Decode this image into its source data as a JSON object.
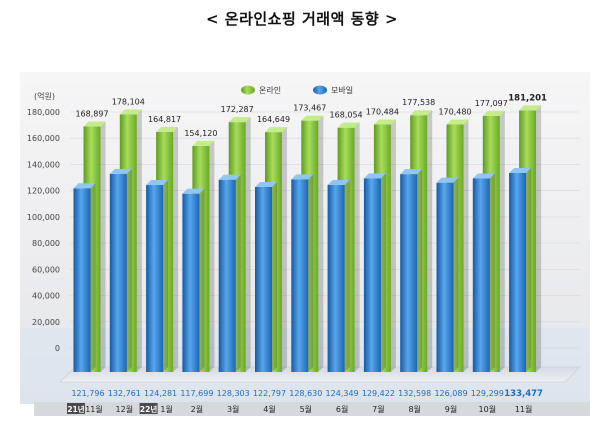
{
  "title": "< 온라인쇼핑 거래액 동향 >",
  "chart_data": {
    "type": "bar",
    "ylabel": "(억원)",
    "ylim": [
      0,
      180000
    ],
    "yticks": [
      "180,000",
      "160,000",
      "140,000",
      "120,000",
      "100,000",
      "80,000",
      "60,000",
      "40,000",
      "20,000",
      "0"
    ],
    "categories": [
      "11월",
      "12월",
      "1월",
      "2월",
      "3월",
      "4월",
      "5월",
      "6월",
      "7월",
      "8월",
      "9월",
      "10월",
      "11월"
    ],
    "year_badges": [
      {
        "index": 0,
        "label": "21년"
      },
      {
        "index": 2,
        "label": "22년"
      }
    ],
    "series": [
      {
        "name": "온라인",
        "color": "#8cc63f",
        "values": [
          168897,
          178104,
          164817,
          154120,
          172287,
          164649,
          173467,
          168054,
          170484,
          177538,
          170480,
          177097,
          181201
        ],
        "labels": [
          "168,897",
          "178,104",
          "164,817",
          "154,120",
          "172,287",
          "164,649",
          "173,467",
          "168,054",
          "170,484",
          "177,538",
          "170,480",
          "177,097",
          "181,201"
        ]
      },
      {
        "name": "모바일",
        "color": "#2b7fd0",
        "values": [
          121796,
          132761,
          124281,
          117699,
          128303,
          122797,
          128630,
          124349,
          129422,
          132598,
          126089,
          129299,
          133477
        ],
        "labels": [
          "121,796",
          "132,761",
          "124,281",
          "117,699",
          "128,303",
          "122,797",
          "128,630",
          "124,349",
          "129,422",
          "132,598",
          "126,089",
          "129,299",
          "133,477"
        ]
      }
    ],
    "legend_position": "top-center",
    "grid": true
  }
}
